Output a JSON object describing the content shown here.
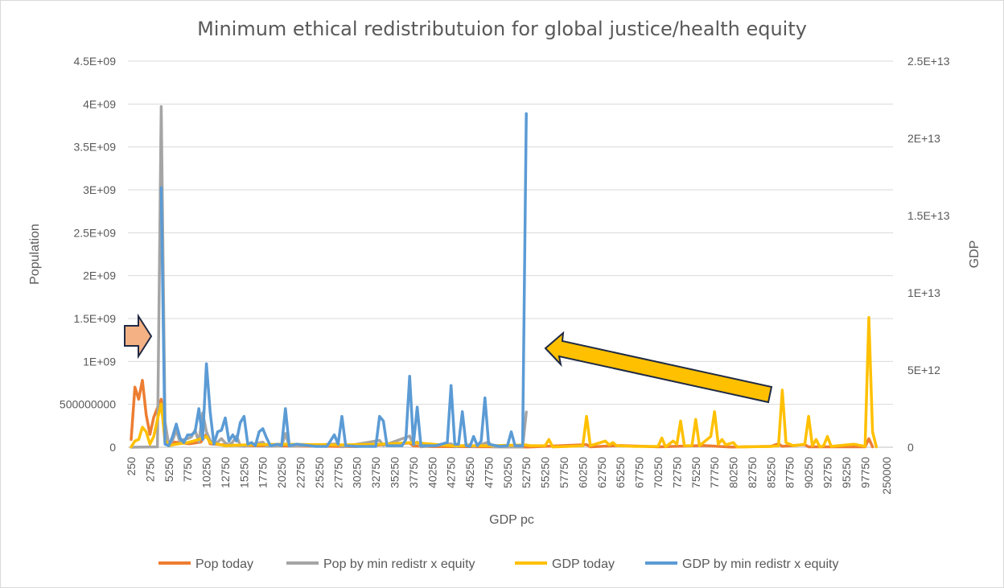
{
  "chart_data": {
    "type": "line",
    "title": "Minimum ethical redistributuion for global justice/health equity",
    "xlabel": "GDP pc",
    "ylabel": "Population",
    "y2label": "GDP",
    "y_ticks": [
      "0",
      "500000000",
      "1E+09",
      "1.5E+09",
      "2E+09",
      "2.5E+09",
      "3E+09",
      "3.5E+09",
      "4E+09",
      "4.5E+09"
    ],
    "y2_ticks": [
      "0",
      "5E+12",
      "1E+13",
      "1.5E+13",
      "2E+13",
      "2.5E+13"
    ],
    "ylim": [
      0,
      4500000000
    ],
    "y2lim": [
      0,
      25000000000000
    ],
    "x_tick_labels": [
      "250",
      "2750",
      "5250",
      "7750",
      "10250",
      "12750",
      "15250",
      "17750",
      "20250",
      "22750",
      "25250",
      "27750",
      "30250",
      "32750",
      "35250",
      "37750",
      "40250",
      "42750",
      "45250",
      "47750",
      "50250",
      "52750",
      "55250",
      "57750",
      "60250",
      "62750",
      "65250",
      "67750",
      "70250",
      "72750",
      "75250",
      "77750",
      "80250",
      "82750",
      "85250",
      "87750",
      "90250",
      "92750",
      "95250",
      "97750",
      "250000"
    ],
    "legend_position": "bottom",
    "grid": true,
    "series": [
      {
        "name": "Pop today",
        "color": "#ED7D31",
        "axis": "left",
        "points": [
          [
            250,
            90000000
          ],
          [
            750,
            700000000
          ],
          [
            1250,
            560000000
          ],
          [
            1750,
            780000000
          ],
          [
            2250,
            380000000
          ],
          [
            2750,
            150000000
          ],
          [
            3250,
            350000000
          ],
          [
            3750,
            460000000
          ],
          [
            4250,
            560000000
          ],
          [
            4750,
            60000000
          ],
          [
            5250,
            20000000
          ],
          [
            6000,
            60000000
          ],
          [
            8000,
            40000000
          ],
          [
            9500,
            60000000
          ],
          [
            10250,
            150000000
          ],
          [
            10750,
            40000000
          ],
          [
            12000,
            30000000
          ],
          [
            15000,
            20000000
          ],
          [
            20000,
            15000000
          ],
          [
            30000,
            8000000
          ],
          [
            37250,
            50000000
          ],
          [
            37750,
            15000000
          ],
          [
            40000,
            8000000
          ],
          [
            50000,
            5000000
          ],
          [
            53000,
            2000000
          ],
          [
            60750,
            30000000
          ],
          [
            61250,
            5000000
          ],
          [
            65250,
            20000000
          ],
          [
            70250,
            5000000
          ],
          [
            76250,
            20000000
          ],
          [
            80000,
            2000000
          ],
          [
            85250,
            10000000
          ],
          [
            86250,
            40000000
          ],
          [
            86750,
            10000000
          ],
          [
            89750,
            30000000
          ],
          [
            90250,
            5000000
          ],
          [
            97750,
            5000000
          ],
          [
            98250,
            100000000
          ],
          [
            98750,
            5000000
          ]
        ]
      },
      {
        "name": "Pop by min redistr x equity",
        "color": "#A5A5A5",
        "axis": "left",
        "points": [
          [
            250,
            0
          ],
          [
            3750,
            5000000
          ],
          [
            4250,
            3970000000
          ],
          [
            4750,
            300000000
          ],
          [
            5250,
            20000000
          ],
          [
            5750,
            80000000
          ],
          [
            6250,
            200000000
          ],
          [
            6750,
            60000000
          ],
          [
            7250,
            90000000
          ],
          [
            7750,
            100000000
          ],
          [
            8250,
            120000000
          ],
          [
            8750,
            200000000
          ],
          [
            9250,
            60000000
          ],
          [
            9750,
            400000000
          ],
          [
            10250,
            180000000
          ],
          [
            10750,
            80000000
          ],
          [
            11250,
            40000000
          ],
          [
            11750,
            60000000
          ],
          [
            12250,
            100000000
          ],
          [
            12750,
            50000000
          ],
          [
            13250,
            30000000
          ],
          [
            13750,
            60000000
          ],
          [
            14250,
            130000000
          ],
          [
            14750,
            20000000
          ],
          [
            15250,
            10000000
          ],
          [
            17750,
            60000000
          ],
          [
            18250,
            10000000
          ],
          [
            20250,
            15000000
          ],
          [
            20750,
            160000000
          ],
          [
            21250,
            10000000
          ],
          [
            27750,
            40000000
          ],
          [
            28250,
            5000000
          ],
          [
            33250,
            80000000
          ],
          [
            33750,
            20000000
          ],
          [
            37250,
            130000000
          ],
          [
            37750,
            30000000
          ],
          [
            38250,
            60000000
          ],
          [
            38750,
            5000000
          ],
          [
            42750,
            40000000
          ],
          [
            43250,
            5000000
          ],
          [
            45250,
            30000000
          ],
          [
            45750,
            5000000
          ],
          [
            47750,
            60000000
          ],
          [
            48250,
            5000000
          ],
          [
            52250,
            2000000
          ],
          [
            52750,
            410000000
          ]
        ]
      },
      {
        "name": "GDP today",
        "color": "#FFC000",
        "axis": "right",
        "points": [
          [
            250,
            20000000000
          ],
          [
            750,
            400000000000
          ],
          [
            1250,
            500000000000
          ],
          [
            1750,
            1300000000000
          ],
          [
            2250,
            1000000000000
          ],
          [
            2750,
            200000000000
          ],
          [
            3250,
            700000000000
          ],
          [
            3750,
            1800000000000
          ],
          [
            4250,
            2800000000000
          ],
          [
            4750,
            500000000000
          ],
          [
            5250,
            100000000000
          ],
          [
            6250,
            200000000000
          ],
          [
            7750,
            300000000000
          ],
          [
            9250,
            500000000000
          ],
          [
            10250,
            700000000000
          ],
          [
            10750,
            300000000000
          ],
          [
            12750,
            100000000000
          ],
          [
            15250,
            150000000000
          ],
          [
            20250,
            200000000000
          ],
          [
            27750,
            150000000000
          ],
          [
            33250,
            200000000000
          ],
          [
            37750,
            300000000000
          ],
          [
            42750,
            100000000000
          ],
          [
            47750,
            100000000000
          ],
          [
            52750,
            150000000000
          ],
          [
            53250,
            100000000000
          ],
          [
            55250,
            100000000000
          ],
          [
            55750,
            500000000000
          ],
          [
            56250,
            20000000000
          ],
          [
            58250,
            50000000000
          ],
          [
            60250,
            100000000000
          ],
          [
            60750,
            2000000000000
          ],
          [
            61250,
            100000000000
          ],
          [
            63250,
            400000000000
          ],
          [
            63750,
            150000000000
          ],
          [
            64250,
            300000000000
          ],
          [
            64750,
            100000000000
          ],
          [
            67250,
            50000000000
          ],
          [
            70250,
            50000000000
          ],
          [
            70750,
            600000000000
          ],
          [
            71250,
            20000000000
          ],
          [
            72250,
            400000000000
          ],
          [
            72750,
            200000000000
          ],
          [
            73250,
            1700000000000
          ],
          [
            73750,
            100000000000
          ],
          [
            74750,
            100000000000
          ],
          [
            75250,
            1800000000000
          ],
          [
            75750,
            100000000000
          ],
          [
            77250,
            700000000000
          ],
          [
            77750,
            2300000000000
          ],
          [
            78250,
            200000000000
          ],
          [
            78750,
            500000000000
          ],
          [
            79250,
            150000000000
          ],
          [
            80250,
            300000000000
          ],
          [
            80750,
            20000000000
          ],
          [
            85250,
            50000000000
          ],
          [
            86250,
            100000000000
          ],
          [
            86750,
            3700000000000
          ],
          [
            87250,
            300000000000
          ],
          [
            88250,
            100000000000
          ],
          [
            89750,
            200000000000
          ],
          [
            90250,
            2000000000000
          ],
          [
            90750,
            100000000000
          ],
          [
            91250,
            500000000000
          ],
          [
            91750,
            20000000000
          ],
          [
            92250,
            100000000000
          ],
          [
            92750,
            700000000000
          ],
          [
            93250,
            50000000000
          ],
          [
            95250,
            150000000000
          ],
          [
            96250,
            200000000000
          ],
          [
            97750,
            50000000000
          ],
          [
            98250,
            8400000000000
          ],
          [
            98750,
            1000000000000
          ],
          [
            99250,
            20000000000
          ]
        ]
      },
      {
        "name": "GDP by min redistr x equity",
        "color": "#5B9BD5",
        "axis": "right",
        "points": [
          [
            4250,
            16800000000000
          ],
          [
            4750,
            200000000000
          ],
          [
            5250,
            100000000000
          ],
          [
            5750,
            700000000000
          ],
          [
            6250,
            1500000000000
          ],
          [
            6750,
            600000000000
          ],
          [
            7250,
            300000000000
          ],
          [
            7750,
            800000000000
          ],
          [
            8250,
            800000000000
          ],
          [
            8750,
            1000000000000
          ],
          [
            9250,
            2500000000000
          ],
          [
            9750,
            500000000000
          ],
          [
            10250,
            5400000000000
          ],
          [
            10750,
            2300000000000
          ],
          [
            11250,
            200000000000
          ],
          [
            11750,
            1000000000000
          ],
          [
            12250,
            1100000000000
          ],
          [
            12750,
            1900000000000
          ],
          [
            13250,
            400000000000
          ],
          [
            13750,
            800000000000
          ],
          [
            14250,
            400000000000
          ],
          [
            14750,
            1600000000000
          ],
          [
            15250,
            2000000000000
          ],
          [
            15750,
            200000000000
          ],
          [
            16250,
            300000000000
          ],
          [
            16750,
            100000000000
          ],
          [
            17250,
            1000000000000
          ],
          [
            17750,
            1200000000000
          ],
          [
            18250,
            600000000000
          ],
          [
            18750,
            100000000000
          ],
          [
            19750,
            200000000000
          ],
          [
            20250,
            100000000000
          ],
          [
            20750,
            2500000000000
          ],
          [
            21250,
            100000000000
          ],
          [
            22250,
            200000000000
          ],
          [
            24750,
            50000000000
          ],
          [
            26250,
            50000000000
          ],
          [
            27250,
            800000000000
          ],
          [
            27750,
            200000000000
          ],
          [
            28250,
            2000000000000
          ],
          [
            28750,
            100000000000
          ],
          [
            30250,
            50000000000
          ],
          [
            32750,
            50000000000
          ],
          [
            33250,
            2000000000000
          ],
          [
            33750,
            1700000000000
          ],
          [
            34250,
            100000000000
          ],
          [
            36250,
            100000000000
          ],
          [
            36750,
            500000000000
          ],
          [
            37250,
            4600000000000
          ],
          [
            37750,
            200000000000
          ],
          [
            38250,
            2600000000000
          ],
          [
            38750,
            100000000000
          ],
          [
            40750,
            100000000000
          ],
          [
            42250,
            300000000000
          ],
          [
            42750,
            4000000000000
          ],
          [
            43250,
            200000000000
          ],
          [
            43750,
            200000000000
          ],
          [
            44250,
            2300000000000
          ],
          [
            44750,
            100000000000
          ],
          [
            45250,
            50000000000
          ],
          [
            45750,
            700000000000
          ],
          [
            46250,
            100000000000
          ],
          [
            46750,
            400000000000
          ],
          [
            47250,
            3200000000000
          ],
          [
            47750,
            200000000000
          ],
          [
            49250,
            50000000000
          ],
          [
            50250,
            100000000000
          ],
          [
            50750,
            1000000000000
          ],
          [
            51250,
            100000000000
          ],
          [
            52250,
            100000000000
          ],
          [
            52750,
            21600000000000
          ]
        ]
      }
    ]
  }
}
